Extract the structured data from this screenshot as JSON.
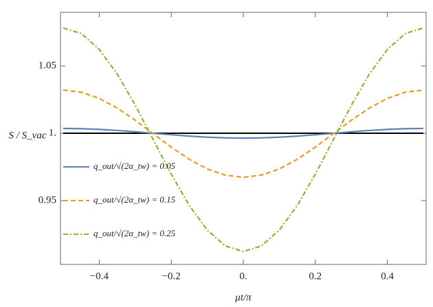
{
  "chart_data": {
    "type": "line",
    "x_label": "μt/π",
    "y_label": "S / S_vac",
    "x": [
      -0.5,
      -0.45,
      -0.4,
      -0.35,
      -0.3,
      -0.25,
      -0.2,
      -0.15,
      -0.1,
      -0.05,
      0,
      0.05,
      0.1,
      0.15,
      0.2,
      0.25,
      0.3,
      0.35,
      0.4,
      0.45,
      0.5
    ],
    "series": [
      {
        "name": "q_out/√(2α_tw) = 0.05",
        "color": "#5e81b5",
        "dash": "solid",
        "values": [
          1.0036,
          1.0034,
          1.0029,
          1.0021,
          1.0011,
          1.0,
          0.9989,
          0.9979,
          0.9971,
          0.9966,
          0.9964,
          0.9966,
          0.9971,
          0.9979,
          0.9989,
          1.0,
          1.0011,
          1.0021,
          1.0029,
          1.0034,
          1.0036
        ]
      },
      {
        "name": "q_out/√(2α_tw) = 0.15",
        "color": "#e19c24",
        "dash": "dashed",
        "values": [
          1.0321,
          1.0305,
          1.0259,
          1.0187,
          1.0097,
          0.9997,
          0.9897,
          0.9807,
          0.9735,
          0.9689,
          0.9673,
          0.9689,
          0.9735,
          0.9807,
          0.9897,
          0.9997,
          1.0097,
          1.0187,
          1.0259,
          1.0305,
          1.0321
        ]
      },
      {
        "name": "q_out/√(2α_tw) = 0.25",
        "color": "#8fb032",
        "dash": "dashdot",
        "values": [
          1.0782,
          1.0741,
          1.0623,
          1.044,
          1.0208,
          0.9952,
          0.9696,
          0.9464,
          0.9281,
          0.9163,
          0.9122,
          0.9163,
          0.9281,
          0.9464,
          0.9696,
          0.9952,
          1.0208,
          1.044,
          1.0623,
          1.0741,
          1.0782
        ]
      }
    ],
    "reference_line": {
      "value": 1,
      "color": "#000000"
    },
    "xlim": [
      -0.5,
      0.5
    ],
    "ylim": [
      0.9026,
      1.0898
    ],
    "xticks": [
      {
        "value": -0.4,
        "label": "−0.4"
      },
      {
        "value": -0.2,
        "label": "−0.2"
      },
      {
        "value": 0,
        "label": "0."
      },
      0.2,
      0.4
    ],
    "yticks": [
      0.95,
      {
        "value": 1,
        "label": "1."
      },
      1.05
    ],
    "legend": "left"
  }
}
